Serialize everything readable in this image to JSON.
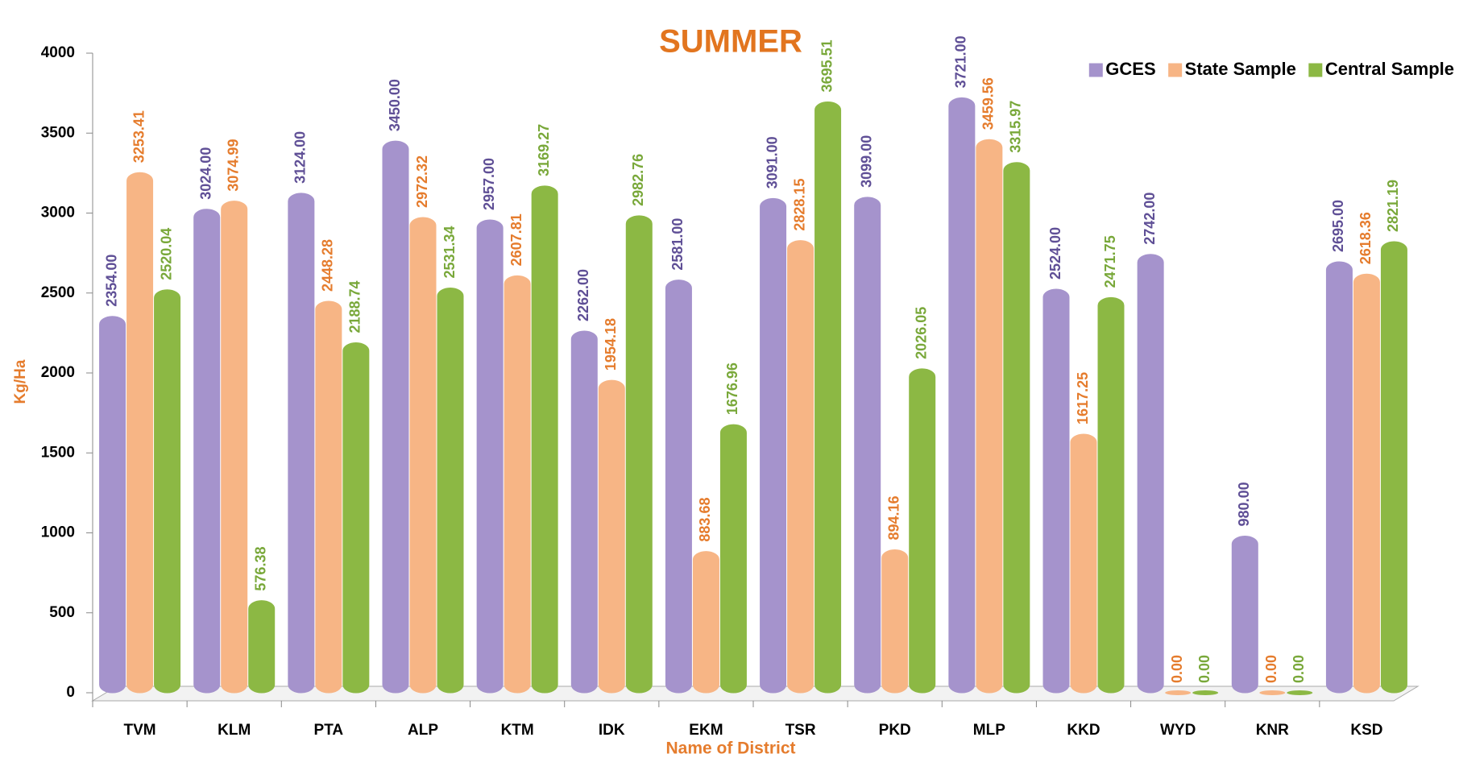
{
  "chart_data": {
    "type": "bar",
    "title": "SUMMER",
    "x_label": "Name of District",
    "y_label": "Kg/Ha",
    "categories": [
      "TVM",
      "KLM",
      "PTA",
      "ALP",
      "KTM",
      "IDK",
      "EKM",
      "TSR",
      "PKD",
      "MLP",
      "KKD",
      "WYD",
      "KNR",
      "KSD"
    ],
    "series": [
      {
        "name": "GCES",
        "color": "#a593cc",
        "label_color": "#5f4f96",
        "values": [
          2354,
          3024,
          3124,
          3450,
          2957,
          2262,
          2581,
          3091,
          3099,
          3721,
          2524,
          2742,
          980,
          2695
        ],
        "value_labels": [
          "2354.00",
          "3024.00",
          "3124.00",
          "3450.00",
          "2957.00",
          "2262.00",
          "2581.00",
          "3091.00",
          "3099.00",
          "3721.00",
          "2524.00",
          "2742.00",
          "980.00",
          "2695.00"
        ]
      },
      {
        "name": "State Sample",
        "color": "#f7b585",
        "label_color": "#e57c2d",
        "values": [
          3253.41,
          3074.99,
          2448.28,
          2972.32,
          2607.81,
          1954.18,
          883.68,
          2828.15,
          894.16,
          3459.56,
          1617.25,
          0,
          0,
          2618.36
        ],
        "value_labels": [
          "3253.41",
          "3074.99",
          "2448.28",
          "2972.32",
          "2607.81",
          "1954.18",
          "883.68",
          "2828.15",
          "894.16",
          "3459.56",
          "1617.25",
          "0.00",
          "0.00",
          "2618.36"
        ]
      },
      {
        "name": "Central Sample",
        "color": "#8cb844",
        "label_color": "#79a83a",
        "values": [
          2520.04,
          576.38,
          2188.74,
          2531.34,
          3169.27,
          2982.76,
          1676.96,
          3695.51,
          2026.05,
          3315.97,
          2471.75,
          0,
          0,
          2821.19
        ],
        "value_labels": [
          "2520.04",
          "576.38",
          "2188.74",
          "2531.34",
          "3169.27",
          "2982.76",
          "1676.96",
          "3695.51",
          "2026.05",
          "3315.97",
          "2471.75",
          "0.00",
          "0.00",
          "2821.19"
        ]
      }
    ],
    "ylim": [
      0,
      4000
    ],
    "yticks": [
      0,
      500,
      1000,
      1500,
      2000,
      2500,
      3000,
      3500,
      4000
    ],
    "grid": false,
    "legend": "top-right"
  }
}
